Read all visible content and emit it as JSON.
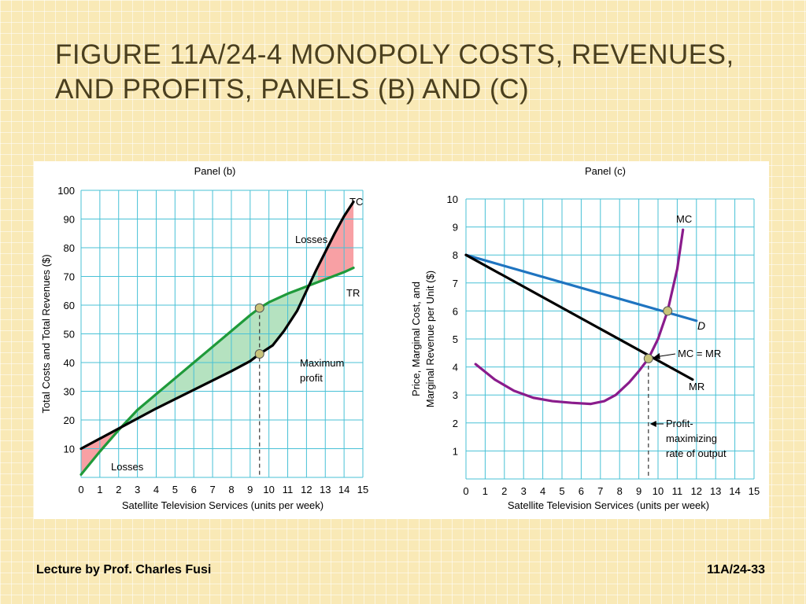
{
  "slide": {
    "title_line1": "FIGURE 11A/24-4  MONOPOLY COSTS, REVENUES,",
    "title_line2": "AND PROFITS, PANELS (B) AND (C)",
    "footer_left": "Lecture by Prof. Charles Fusi",
    "footer_right": "11A/24-33"
  },
  "colors": {
    "grid": "#48c1d6",
    "tc": "#000000",
    "tr": "#1f9a3a",
    "demand": "#1f74c0",
    "mr": "#000000",
    "mc": "#8a1c8c",
    "profit_fill": "#b5e2c0",
    "loss_fill": "#f8a0a4",
    "point": "#c9c47a"
  },
  "chart_data": [
    {
      "type": "line",
      "panel_title": "Panel (b)",
      "xlabel": "Satellite Television Services (units per week)",
      "ylabel": "Total Costs and Total Revenues ($)",
      "xlim": [
        0,
        15
      ],
      "ylim": [
        0,
        100
      ],
      "x_ticks": [
        0,
        1,
        2,
        3,
        4,
        5,
        6,
        7,
        8,
        9,
        10,
        11,
        12,
        13,
        14,
        15
      ],
      "y_ticks": [
        10,
        20,
        30,
        40,
        50,
        60,
        70,
        80,
        90,
        100
      ],
      "grid": true,
      "series": [
        {
          "name": "TC",
          "x": [
            0,
            2,
            4,
            6,
            8,
            9,
            9.5,
            10.2,
            10.8,
            11.5,
            12,
            12.5,
            13,
            13.5,
            14,
            14.5
          ],
          "y": [
            10,
            17,
            24,
            30.5,
            37,
            40.5,
            43,
            46,
            51,
            58,
            65,
            72,
            78.5,
            85,
            91,
            96
          ]
        },
        {
          "name": "TR",
          "x": [
            0,
            1,
            2,
            3,
            4,
            5,
            6,
            7,
            8,
            9,
            9.5,
            10,
            11,
            12,
            13,
            14,
            14.5
          ],
          "y": [
            1,
            9,
            16.5,
            23.5,
            29,
            34.5,
            40,
            45.5,
            51,
            56.5,
            59,
            61,
            64,
            66.5,
            69,
            71.5,
            73
          ]
        }
      ],
      "points": [
        {
          "x": 9.5,
          "y": 59
        },
        {
          "x": 9.5,
          "y": 43
        }
      ],
      "annotations": [
        "TC",
        "TR",
        "Losses",
        "Maximum",
        "profit",
        "Losses"
      ]
    },
    {
      "type": "line",
      "panel_title": "Panel (c)",
      "xlabel": "Satellite Television Services (units per week)",
      "ylabel_line1": "Price, Marginal Cost, and",
      "ylabel_line2": "Marginal Revenue per Unit ($)",
      "xlim": [
        0,
        15
      ],
      "ylim": [
        0,
        10
      ],
      "x_ticks": [
        0,
        1,
        2,
        3,
        4,
        5,
        6,
        7,
        8,
        9,
        10,
        11,
        12,
        13,
        14,
        15
      ],
      "y_ticks": [
        1,
        2,
        3,
        4,
        5,
        6,
        7,
        8,
        9,
        10
      ],
      "grid": true,
      "series": [
        {
          "name": "D",
          "x": [
            0,
            12
          ],
          "y": [
            8,
            5.65
          ]
        },
        {
          "name": "MR",
          "x": [
            0,
            11.8
          ],
          "y": [
            8,
            3.55
          ]
        },
        {
          "name": "MC",
          "x": [
            0.5,
            1.5,
            2.5,
            3.5,
            4.5,
            5.5,
            6.5,
            7.2,
            7.8,
            8.5,
            9,
            9.5,
            10,
            10.5,
            11,
            11.3
          ],
          "y": [
            4.1,
            3.55,
            3.15,
            2.9,
            2.78,
            2.72,
            2.68,
            2.78,
            3.0,
            3.45,
            3.85,
            4.3,
            5.0,
            6.0,
            7.5,
            8.9
          ]
        }
      ],
      "points": [
        {
          "x": 9.5,
          "y": 4.3
        },
        {
          "x": 10.5,
          "y": 6.0
        }
      ],
      "annotations": [
        "MC",
        "D",
        "MC = MR",
        "MR",
        "Profit-",
        "maximizing",
        "rate of output"
      ]
    }
  ]
}
